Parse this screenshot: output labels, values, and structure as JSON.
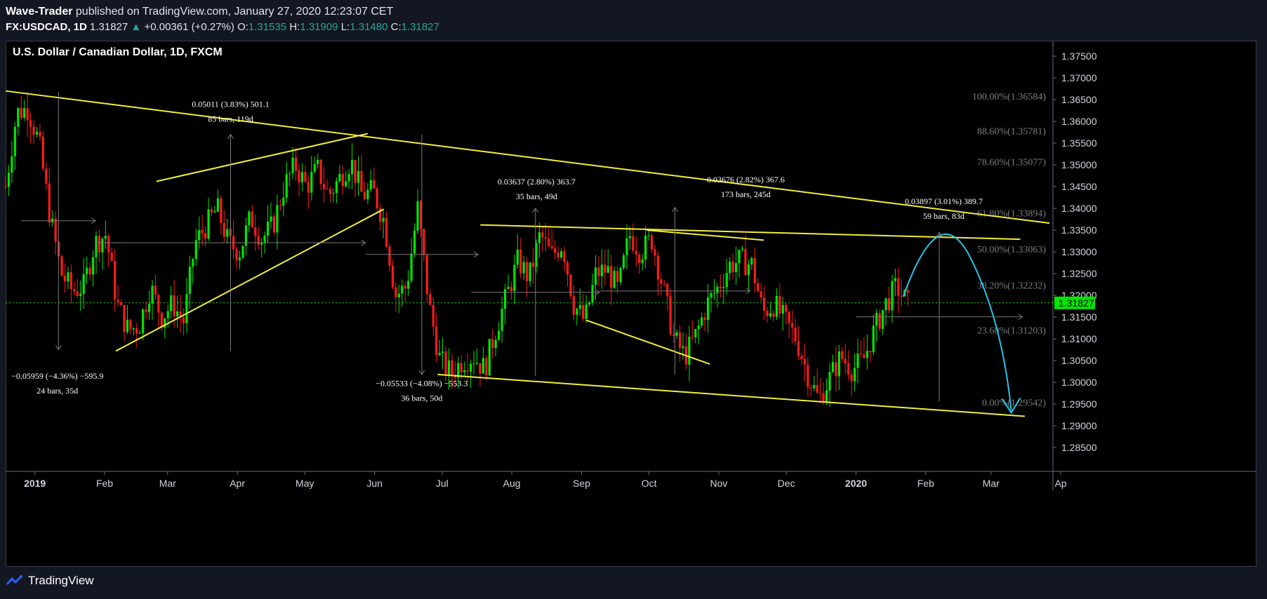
{
  "header": {
    "author": "Wave-Trader",
    "published_text": " published on TradingView.com, January 27, 2020 12:23:07 CET",
    "symbol": "FX:USDCAD, 1D",
    "last": "1.31827",
    "change_arrow": "▲",
    "change": "+0.00361 (+0.27%)",
    "o_label": "O:",
    "o": "1.31535",
    "h_label": "H:",
    "h": "1.31909",
    "l_label": "L:",
    "l": "1.31480",
    "c_label": "C:",
    "c": "1.31827"
  },
  "footer": {
    "brand": "TradingView"
  },
  "chart_data": {
    "type": "candlestick",
    "title": "U.S. Dollar / Canadian Dollar, 1D, FXCM",
    "ylim": [
      1.281,
      1.378
    ],
    "y_ticks": [
      "1.37500",
      "1.37000",
      "1.36500",
      "1.36000",
      "1.35500",
      "1.35000",
      "1.34500",
      "1.34000",
      "1.33500",
      "1.33000",
      "1.32500",
      "1.32000",
      "1.31500",
      "1.31000",
      "1.30500",
      "1.30000",
      "1.29500",
      "1.29000",
      "1.28500"
    ],
    "x_ticks": [
      "2019",
      "Feb",
      "Mar",
      "Apr",
      "May",
      "Jun",
      "Jul",
      "Aug",
      "Sep",
      "Oct",
      "Nov",
      "Dec",
      "2020",
      "Feb",
      "Mar",
      "Ap"
    ],
    "last_price_label": "1.31827",
    "last_price": 1.31827,
    "close_path": [
      1.345,
      1.362,
      1.363,
      1.355,
      1.338,
      1.325,
      1.321,
      1.322,
      1.332,
      1.334,
      1.318,
      1.312,
      1.313,
      1.322,
      1.315,
      1.318,
      1.314,
      1.332,
      1.336,
      1.34,
      1.332,
      1.33,
      1.338,
      1.333,
      1.336,
      1.345,
      1.35,
      1.345,
      1.349,
      1.343,
      1.347,
      1.351,
      1.343,
      1.344,
      1.337,
      1.32,
      1.322,
      1.34,
      1.318,
      1.305,
      1.302,
      1.305,
      1.306,
      1.303,
      1.312,
      1.32,
      1.328,
      1.324,
      1.334,
      1.329,
      1.332,
      1.318,
      1.314,
      1.325,
      1.326,
      1.321,
      1.334,
      1.33,
      1.333,
      1.322,
      1.31,
      1.306,
      1.311,
      1.318,
      1.322,
      1.327,
      1.328,
      1.327,
      1.316,
      1.318,
      1.314,
      1.31,
      1.302,
      1.296,
      1.301,
      1.306,
      1.303,
      1.305,
      1.312,
      1.318,
      1.322,
      1.318
    ],
    "fib_levels": [
      {
        "label": "100.00%(1.36584)",
        "price": 1.36584
      },
      {
        "label": "88.60%(1.35781)",
        "price": 1.35781
      },
      {
        "label": "78.60%(1.35077)",
        "price": 1.35077
      },
      {
        "label": "61.80%(1.33894)",
        "price": 1.33894
      },
      {
        "label": "50.00%(1.33063)",
        "price": 1.33063
      },
      {
        "label": "38.20%(1.32232)",
        "price": 1.32232
      },
      {
        "label": "23.60%(1.31203)",
        "price": 1.31203
      },
      {
        "label": "0.00%(1.29542)",
        "price": 1.29542
      }
    ],
    "measure_labels": [
      {
        "line1": "0.05011 (3.83%) 501.1",
        "line2": "85 bars, 119d"
      },
      {
        "line1": "−0.05959 (−4.36%) −595.9",
        "line2": "24 bars, 35d"
      },
      {
        "line1": "0.03637 (2.80%) 363.7",
        "line2": "35 bars, 49d"
      },
      {
        "line1": "−0.05533 (−4.08%) −553.3",
        "line2": "36 bars, 50d"
      },
      {
        "line1": "0.03676 (2.82%) 367.6",
        "line2": "173 bars, 245d"
      },
      {
        "line1": "0.03897 (3.01%) 389.7",
        "line2": "59 bars, 83d"
      }
    ],
    "colors": {
      "up": "#00e600",
      "down": "#ff1a1a",
      "trendline": "#f2ee3a",
      "projection": "#25c6e6",
      "fib": "#7c7c7c",
      "last_price": "#00e600"
    }
  }
}
